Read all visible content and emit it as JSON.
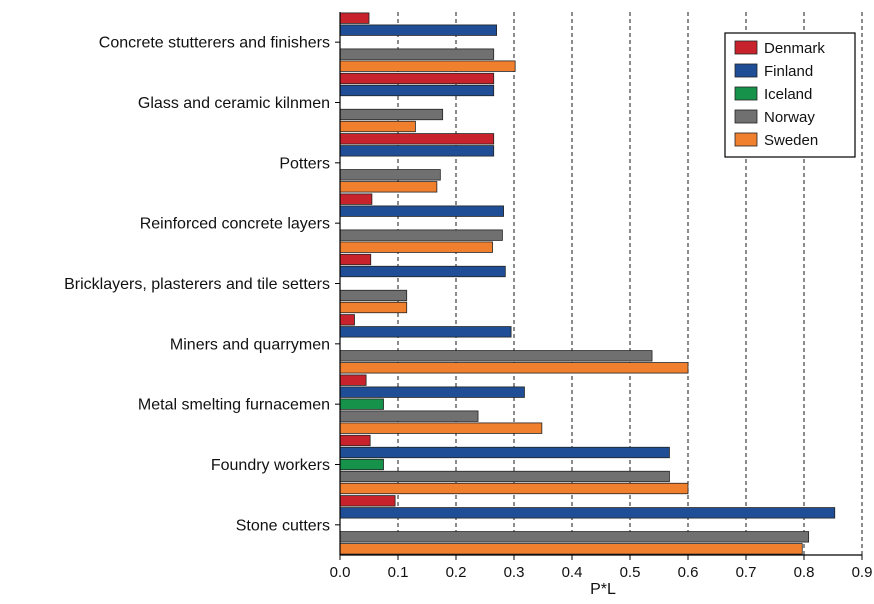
{
  "chart_data": {
    "type": "bar",
    "orientation": "horizontal",
    "title": "",
    "xlabel": "P*L",
    "ylabel": "",
    "xlim": [
      0.0,
      0.9
    ],
    "x_ticks": [
      "0.0",
      "0.1",
      "0.2",
      "0.3",
      "0.4",
      "0.5",
      "0.6",
      "0.7",
      "0.8",
      "0.9"
    ],
    "grid": "vertical dashed",
    "legend_position": "top-right",
    "categories": [
      "Concrete stutterers and finishers",
      "Glass and ceramic kilnmen",
      "Potters",
      "Reinforced concrete layers",
      "Bricklayers, plasterers and tile setters",
      "Miners and quarrymen",
      "Metal smelting furnacemen",
      "Foundry workers",
      "Stone cutters"
    ],
    "series": [
      {
        "name": "Denmark",
        "color": "#c8232c",
        "values": [
          0.05,
          0.265,
          0.265,
          0.055,
          0.053,
          0.025,
          0.045,
          0.052,
          0.095
        ]
      },
      {
        "name": "Finland",
        "color": "#1f4e96",
        "values": [
          0.27,
          0.265,
          0.265,
          0.282,
          0.285,
          0.295,
          0.318,
          0.568,
          0.853
        ]
      },
      {
        "name": "Iceland",
        "color": "#17924a",
        "values": [
          null,
          null,
          null,
          null,
          null,
          null,
          0.075,
          0.075,
          null
        ]
      },
      {
        "name": "Norway",
        "color": "#707070",
        "values": [
          0.265,
          0.177,
          0.173,
          0.28,
          0.115,
          0.538,
          0.238,
          0.568,
          0.808
        ]
      },
      {
        "name": "Sweden",
        "color": "#f07f2e",
        "values": [
          0.302,
          0.13,
          0.167,
          0.263,
          0.115,
          0.6,
          0.348,
          0.6,
          0.797
        ]
      }
    ]
  }
}
